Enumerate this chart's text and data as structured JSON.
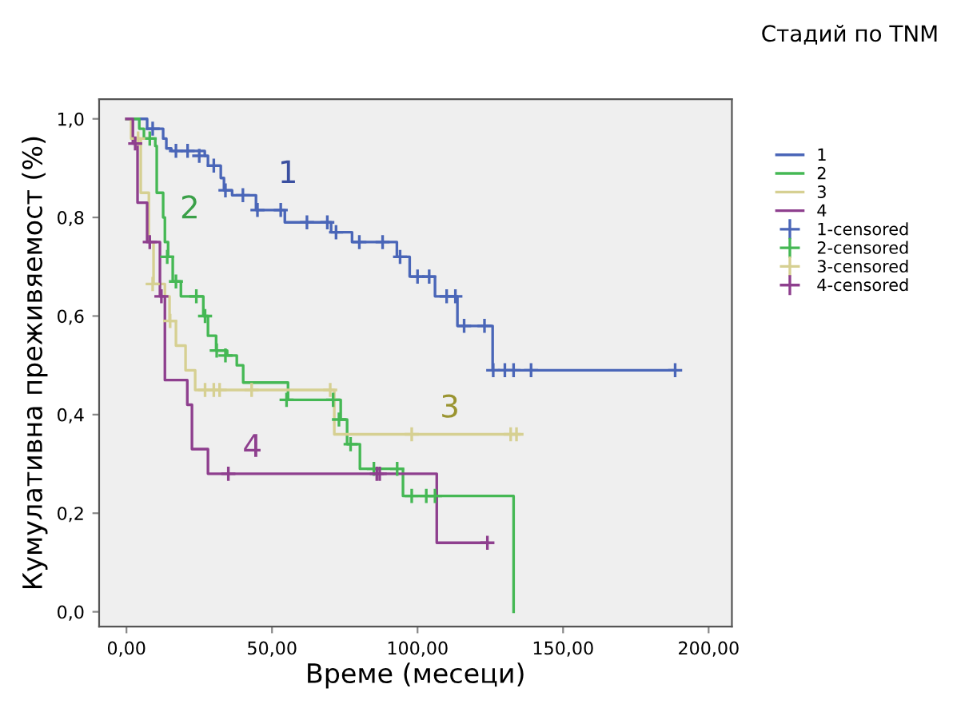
{
  "chart_data": {
    "type": "step",
    "legend_title": "Стадий по TNM",
    "xlabel": "Време (месеци)",
    "ylabel": "Кумулативна преживяемост (%)",
    "xlim": [
      -9.4,
      208
    ],
    "ylim": [
      -0.03,
      1.04
    ],
    "xticks": [
      {
        "value": 0,
        "label": "0,00"
      },
      {
        "value": 50,
        "label": "50,00"
      },
      {
        "value": 100,
        "label": "100,00"
      },
      {
        "value": 150,
        "label": "150,00"
      },
      {
        "value": 200,
        "label": "200,00"
      }
    ],
    "yticks": [
      {
        "value": 0,
        "label": "0,0"
      },
      {
        "value": 0.2,
        "label": "0,2"
      },
      {
        "value": 0.4,
        "label": "0,4"
      },
      {
        "value": 0.6,
        "label": "0,6"
      },
      {
        "value": 0.8,
        "label": "0,8"
      },
      {
        "value": 1.0,
        "label": "1,0"
      }
    ],
    "grid": false,
    "legend": "right",
    "marker": "none",
    "series": [
      {
        "name": "1",
        "color": "#4a66b8",
        "x": [
          0,
          7.1,
          12.6,
          13.7,
          15.4,
          26.9,
          28,
          32.4,
          33.5,
          36.3,
          44.5,
          54.4,
          70.3,
          77.5,
          92.9,
          97.3,
          106,
          113.7,
          125.8,
          188.5
        ],
        "values": [
          1.0,
          0.98,
          0.96,
          0.94,
          0.935,
          0.925,
          0.905,
          0.88,
          0.855,
          0.845,
          0.815,
          0.79,
          0.77,
          0.75,
          0.72,
          0.68,
          0.64,
          0.58,
          0.49,
          0.49
        ]
      },
      {
        "name": "2",
        "color": "#45b854",
        "x": [
          0,
          4.4,
          6,
          9.9,
          10.4,
          12.6,
          13.2,
          14.3,
          15.9,
          18.7,
          26.4,
          28,
          30.8,
          34.6,
          37.9,
          40.1,
          55.5,
          73.6,
          75.8,
          80.2,
          95,
          133
        ],
        "values": [
          1.0,
          0.98,
          0.96,
          0.945,
          0.85,
          0.8,
          0.75,
          0.72,
          0.67,
          0.64,
          0.6,
          0.56,
          0.53,
          0.52,
          0.5,
          0.465,
          0.43,
          0.39,
          0.34,
          0.29,
          0.235,
          0.0
        ]
      },
      {
        "name": "3",
        "color": "#d6d092",
        "x": [
          0,
          1.6,
          4.9,
          7.7,
          9.3,
          13.2,
          14.8,
          17,
          20.3,
          23.6,
          71.4,
          135
        ],
        "values": [
          1.0,
          0.96,
          0.85,
          0.75,
          0.665,
          0.64,
          0.59,
          0.54,
          0.49,
          0.45,
          0.36,
          0.36
        ]
      },
      {
        "name": "4",
        "color": "#8e3f8e",
        "x": [
          0,
          2.2,
          3.8,
          7.1,
          11.5,
          13.2,
          20.9,
          22.5,
          28,
          106.6,
          124
        ],
        "values": [
          1.0,
          0.95,
          0.83,
          0.75,
          0.64,
          0.47,
          0.42,
          0.33,
          0.28,
          0.14,
          0.14
        ]
      },
      {
        "name": "1-censored",
        "type": "scatter",
        "marker": "cross",
        "color": "#4a66b8",
        "x": [
          9,
          17,
          21,
          25,
          30,
          34,
          40,
          45,
          53,
          62,
          69,
          72,
          80,
          88,
          94,
          100,
          104,
          110,
          113,
          116,
          123,
          126,
          130,
          133,
          139,
          188.5
        ],
        "values": [
          0.98,
          0.935,
          0.935,
          0.925,
          0.905,
          0.855,
          0.845,
          0.815,
          0.815,
          0.79,
          0.79,
          0.77,
          0.75,
          0.75,
          0.72,
          0.68,
          0.68,
          0.64,
          0.64,
          0.58,
          0.58,
          0.49,
          0.49,
          0.49,
          0.49,
          0.49
        ]
      },
      {
        "name": "2-censored",
        "type": "scatter",
        "marker": "cross",
        "color": "#45b854",
        "x": [
          8,
          14,
          17,
          24,
          27,
          31,
          34,
          55,
          71,
          73,
          77,
          85,
          93,
          98,
          103,
          106
        ],
        "values": [
          0.96,
          0.72,
          0.67,
          0.64,
          0.6,
          0.53,
          0.52,
          0.43,
          0.43,
          0.39,
          0.34,
          0.29,
          0.29,
          0.235,
          0.235,
          0.235
        ]
      },
      {
        "name": "3-censored",
        "type": "scatter",
        "marker": "cross",
        "color": "#d6d092",
        "x": [
          4,
          9,
          15,
          27,
          30,
          32,
          43,
          70,
          98,
          132,
          134
        ],
        "values": [
          0.96,
          0.665,
          0.59,
          0.45,
          0.45,
          0.45,
          0.45,
          0.45,
          0.36,
          0.36,
          0.36
        ]
      },
      {
        "name": "4-censored",
        "type": "scatter",
        "marker": "cross",
        "color": "#8e3f8e",
        "x": [
          3,
          8,
          12,
          35,
          86,
          87,
          124
        ],
        "values": [
          0.95,
          0.75,
          0.64,
          0.28,
          0.28,
          0.28,
          0.14
        ]
      }
    ]
  }
}
